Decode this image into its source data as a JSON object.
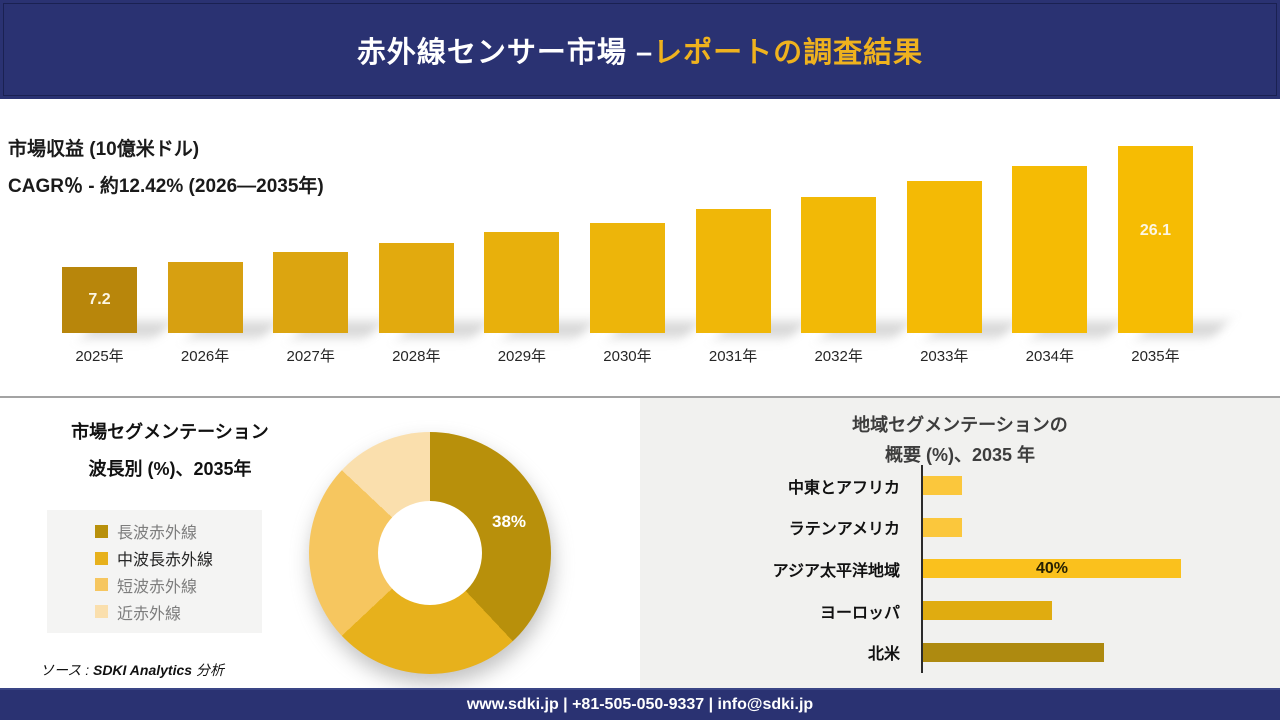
{
  "header": {
    "title_white": "赤外線センサー市場 –",
    "title_gold": "レポートの調査結果"
  },
  "revenue": {
    "metric_label": "市場収益 (10億米ドル)",
    "cagr_label": "CAGR％ - 約12.42% (2026―2035年)"
  },
  "left_panel": {
    "title_line1": "市場セグメンテーション",
    "title_line2": "波長別 (%)、2035年"
  },
  "right_panel": {
    "title_line1": "地域セグメンテーションの",
    "title_line2": "概要 (%)、2035 年"
  },
  "source": {
    "prefix": "ソース : ",
    "brand": "SDKI Analytics",
    "suffix": " 分析"
  },
  "footer": {
    "contact": "www.sdki.jp | +81-505-050-9337 | info@sdki.jp"
  },
  "colors": {
    "navy": "#2A3272",
    "header_accent_text": "#EFB21E",
    "panel_gray": "#F1F1EF",
    "divider": "#A3A3A3"
  },
  "chart_data": [
    {
      "type": "bar",
      "title": "市場収益 (10億米ドル)",
      "subtitle": "CAGR％ - 約12.42% (2026―2035年)",
      "categories": [
        "2025年",
        "2026年",
        "2027年",
        "2028年",
        "2029年",
        "2030年",
        "2031年",
        "2032年",
        "2033年",
        "2034年",
        "2035年"
      ],
      "values": [
        7.2,
        8.0,
        9.5,
        11.0,
        12.7,
        14.1,
        16.3,
        18.1,
        20.6,
        23.0,
        26.1
      ],
      "shown_value_labels": {
        "first": "7.2",
        "last": "26.1"
      },
      "bar_colors": [
        "#B8860B",
        "#D7A011",
        "#DCA510",
        "#E2AA0E",
        "#E8B00C",
        "#EDB50A",
        "#F0B708",
        "#F2B906",
        "#F4BA05",
        "#F5BB04",
        "#F6BC03"
      ],
      "ylim": [
        0,
        26.1
      ],
      "grid": false,
      "value_label_color": "#FCF6E4"
    },
    {
      "type": "pie",
      "title": "市場セグメンテーション 波長別 (%)、2035年",
      "labels": [
        "長波赤外線",
        "中波長赤外線",
        "短波赤外線",
        "近赤外線"
      ],
      "values": [
        38,
        25,
        24,
        13
      ],
      "colors": [
        "#B8900B",
        "#E7B11C",
        "#F6C65F",
        "#FADFAD"
      ],
      "legend_text_colors": [
        "#7D7D7D",
        "#262626",
        "#7D7D7D",
        "#7D7D7D"
      ],
      "shown_label": "38%",
      "legend_position": "left",
      "donut": true
    },
    {
      "type": "bar",
      "orientation": "horizontal",
      "title": "地域セグメンテーションの 概要 (%)、2035 年",
      "categories": [
        "中東とアフリカ",
        "ラテンアメリカ",
        "アジア太平洋地域",
        "ヨーロッパ",
        "北米"
      ],
      "values": [
        6,
        6,
        40,
        20,
        28
      ],
      "colors": [
        "#FBC73C",
        "#FBC73C",
        "#FAC11D",
        "#E0AC10",
        "#AE8A10"
      ],
      "shown_label": {
        "category": "アジア太平洋地域",
        "text": "40%"
      },
      "xlim": [
        0,
        45
      ],
      "grid": false
    }
  ]
}
